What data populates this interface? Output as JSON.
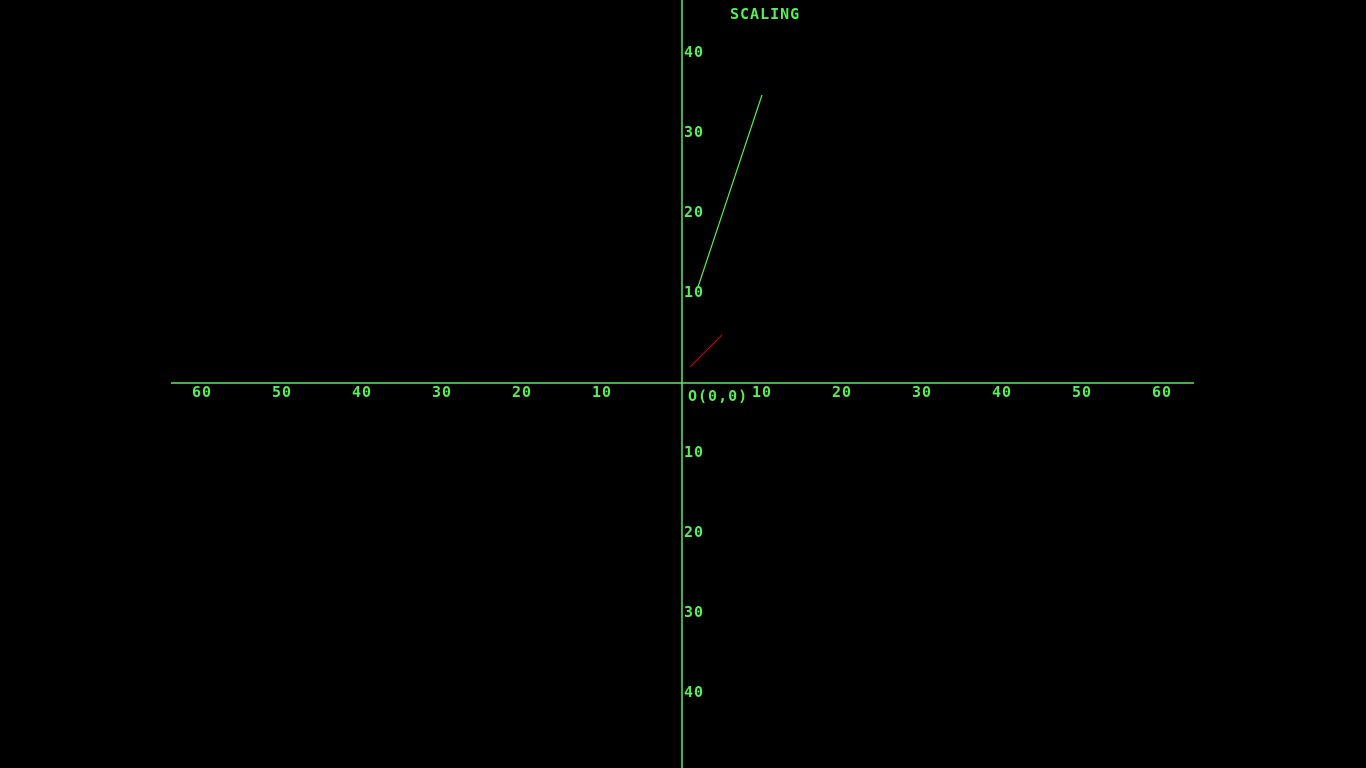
{
  "chart_data": {
    "type": "line",
    "title": "SCALING",
    "origin_label": "O(0,0)",
    "xlim": [
      -64,
      64
    ],
    "ylim": [
      -48,
      48
    ],
    "grid": false,
    "x_ticks": [
      {
        "value": -60,
        "label": "60"
      },
      {
        "value": -50,
        "label": "50"
      },
      {
        "value": -40,
        "label": "40"
      },
      {
        "value": -30,
        "label": "30"
      },
      {
        "value": -20,
        "label": "20"
      },
      {
        "value": -10,
        "label": "10"
      },
      {
        "value": 10,
        "label": "10"
      },
      {
        "value": 20,
        "label": "20"
      },
      {
        "value": 30,
        "label": "30"
      },
      {
        "value": 40,
        "label": "40"
      },
      {
        "value": 50,
        "label": "50"
      },
      {
        "value": 60,
        "label": "60"
      }
    ],
    "y_ticks": [
      {
        "value": 40,
        "label": "40"
      },
      {
        "value": 30,
        "label": "30"
      },
      {
        "value": 20,
        "label": "20"
      },
      {
        "value": 10,
        "label": "10"
      },
      {
        "value": -10,
        "label": "10"
      },
      {
        "value": -20,
        "label": "20"
      },
      {
        "value": -30,
        "label": "30"
      },
      {
        "value": -40,
        "label": "40"
      }
    ],
    "series": [
      {
        "color": "#cc0000",
        "points": [
          [
            1,
            2
          ],
          [
            5,
            6
          ]
        ]
      },
      {
        "color": "#55ee55",
        "points": [
          [
            2,
            12
          ],
          [
            10,
            36
          ]
        ]
      }
    ]
  },
  "colors": {
    "background": "#000000",
    "axis": "#55ee55",
    "text": "#55ee55"
  }
}
